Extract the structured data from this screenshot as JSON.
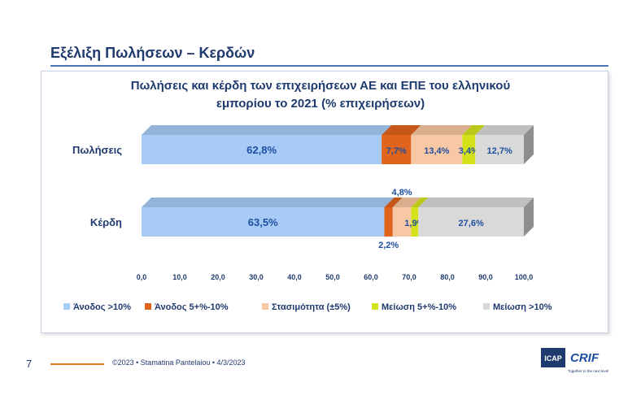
{
  "slide": {
    "title": "Εξέλιξη Πωλήσεων – Κερδών",
    "page_number": "7",
    "credit": "©2023 • Stamatina Pantelaiou • 4/3/2023"
  },
  "logo": {
    "icap_text": "ICAP",
    "crif_text": "CRIF",
    "tagline": "Together to the next level"
  },
  "chart_data": {
    "type": "bar",
    "orientation": "horizontal",
    "stacked": true,
    "title_line1": "Πωλήσεις και κέρδη των επιχειρήσεων ΑΕ και ΕΠΕ του ελληνικού",
    "title_line2": "εμπορίου το 2021 (% επιχειρήσεων)",
    "categories": [
      "Πωλήσεις",
      "Κέρδη"
    ],
    "xlim": [
      0,
      100
    ],
    "ticks": [
      "0,0",
      "10,0",
      "20,0",
      "30,0",
      "40,0",
      "50,0",
      "60,0",
      "70,0",
      "80,0",
      "90,0",
      "100,0"
    ],
    "series": [
      {
        "name": "Άνοδος >10%",
        "color": "#a7cbf6",
        "values": [
          62.8,
          63.5
        ],
        "labels": [
          "62,8%",
          "63,5%"
        ]
      },
      {
        "name": "Άνοδος 5+%-10%",
        "color": "#e0641c",
        "values": [
          7.7,
          2.2
        ],
        "labels": [
          "7,7%",
          "2,2%"
        ]
      },
      {
        "name": "Στασιμότητα (±5%)",
        "color": "#f8c7a4",
        "values": [
          13.4,
          4.8
        ],
        "labels": [
          "13,4%",
          "4,8%"
        ]
      },
      {
        "name": "Μείωση 5+%-10%",
        "color": "#d4e21c",
        "values": [
          3.4,
          1.9
        ],
        "labels": [
          "3,4%",
          "1,9%"
        ]
      },
      {
        "name": "Μείωση >10%",
        "color": "#d9d9d9",
        "values": [
          12.7,
          27.6
        ],
        "labels": [
          "12,7%",
          "27,6%"
        ]
      }
    ],
    "legend_position": "bottom",
    "grid": false
  }
}
